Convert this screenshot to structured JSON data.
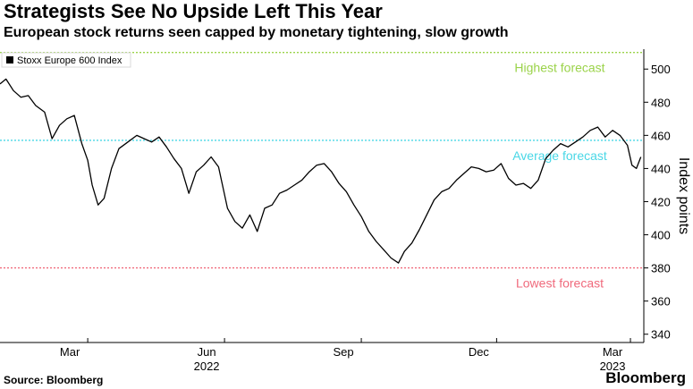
{
  "headline": "Strategists See No Upside Left This Year",
  "subheadline": "European stock returns seen capped by monetary tightening, slow growth",
  "footer": {
    "source": "Source: Bloomberg",
    "brand": "Bloomberg"
  },
  "colors": {
    "highest": "#9bd34a",
    "average": "#49d7e6",
    "lowest": "#f06a7c",
    "line": "#000000"
  },
  "chart_data": {
    "type": "line",
    "legend": [
      "Stoxx Europe 600 Index"
    ],
    "legend_position": "top-left",
    "ylabel": "Index points",
    "ylim": [
      335,
      512
    ],
    "y_ticks": [
      340,
      360,
      380,
      400,
      420,
      440,
      460,
      480,
      500
    ],
    "x_ticks": [
      {
        "label": "Mar",
        "date": "2022-03-01"
      },
      {
        "label": "Jun",
        "date": "2022-06-01"
      },
      {
        "label": "Sep",
        "date": "2022-09-01"
      },
      {
        "label": "Dec",
        "date": "2022-12-01"
      },
      {
        "label": "Mar",
        "date": "2023-03-01"
      }
    ],
    "year_labels": [
      {
        "label": "2022",
        "date": "2022-06-01"
      },
      {
        "label": "2023",
        "date": "2023-03-01"
      }
    ],
    "xlim": [
      "2022-01-01",
      "2023-03-10"
    ],
    "reference_lines": [
      {
        "label": "Highest forecast",
        "value": 510,
        "color": "#9bd34a"
      },
      {
        "label": "Average forecast",
        "value": 457,
        "color": "#49d7e6"
      },
      {
        "label": "Lowest forecast",
        "value": 380,
        "color": "#f06a7c"
      }
    ],
    "series": [
      {
        "name": "Stoxx Europe 600 Index",
        "x": [
          "2022-01-01",
          "2022-01-05",
          "2022-01-10",
          "2022-01-15",
          "2022-01-20",
          "2022-01-25",
          "2022-01-31",
          "2022-02-05",
          "2022-02-10",
          "2022-02-15",
          "2022-02-20",
          "2022-02-25",
          "2022-03-01",
          "2022-03-04",
          "2022-03-08",
          "2022-03-12",
          "2022-03-17",
          "2022-03-22",
          "2022-03-28",
          "2022-04-03",
          "2022-04-08",
          "2022-04-13",
          "2022-04-18",
          "2022-04-23",
          "2022-04-28",
          "2022-05-03",
          "2022-05-08",
          "2022-05-13",
          "2022-05-18",
          "2022-05-23",
          "2022-05-28",
          "2022-06-03",
          "2022-06-08",
          "2022-06-13",
          "2022-06-18",
          "2022-06-23",
          "2022-06-28",
          "2022-07-03",
          "2022-07-08",
          "2022-07-13",
          "2022-07-18",
          "2022-07-23",
          "2022-07-28",
          "2022-08-02",
          "2022-08-07",
          "2022-08-12",
          "2022-08-17",
          "2022-08-22",
          "2022-08-27",
          "2022-09-01",
          "2022-09-06",
          "2022-09-11",
          "2022-09-16",
          "2022-09-21",
          "2022-09-26",
          "2022-09-30",
          "2022-10-05",
          "2022-10-10",
          "2022-10-15",
          "2022-10-20",
          "2022-10-25",
          "2022-10-30",
          "2022-11-04",
          "2022-11-09",
          "2022-11-14",
          "2022-11-19",
          "2022-11-24",
          "2022-11-29",
          "2022-12-04",
          "2022-12-09",
          "2022-12-14",
          "2022-12-19",
          "2022-12-24",
          "2022-12-29",
          "2023-01-03",
          "2023-01-08",
          "2023-01-13",
          "2023-01-18",
          "2023-01-23",
          "2023-01-28",
          "2023-02-02",
          "2023-02-07",
          "2023-02-12",
          "2023-02-17",
          "2023-02-22",
          "2023-02-27",
          "2023-03-02",
          "2023-03-05",
          "2023-03-08"
        ],
        "values": [
          491,
          494,
          487,
          483,
          484,
          478,
          474,
          458,
          466,
          470,
          472,
          455,
          445,
          430,
          418,
          422,
          440,
          452,
          456,
          460,
          458,
          456,
          459,
          453,
          446,
          440,
          425,
          438,
          442,
          447,
          441,
          416,
          408,
          404,
          412,
          402,
          416,
          418,
          425,
          427,
          430,
          433,
          438,
          442,
          443,
          438,
          431,
          426,
          418,
          411,
          402,
          396,
          391,
          386,
          383,
          390,
          395,
          403,
          412,
          421,
          426,
          428,
          433,
          437,
          441,
          440,
          438,
          439,
          443,
          434,
          430,
          431,
          428,
          433,
          446,
          451,
          455,
          453,
          456,
          459,
          463,
          465,
          459,
          463,
          460,
          454,
          442,
          440,
          447
        ]
      }
    ]
  }
}
